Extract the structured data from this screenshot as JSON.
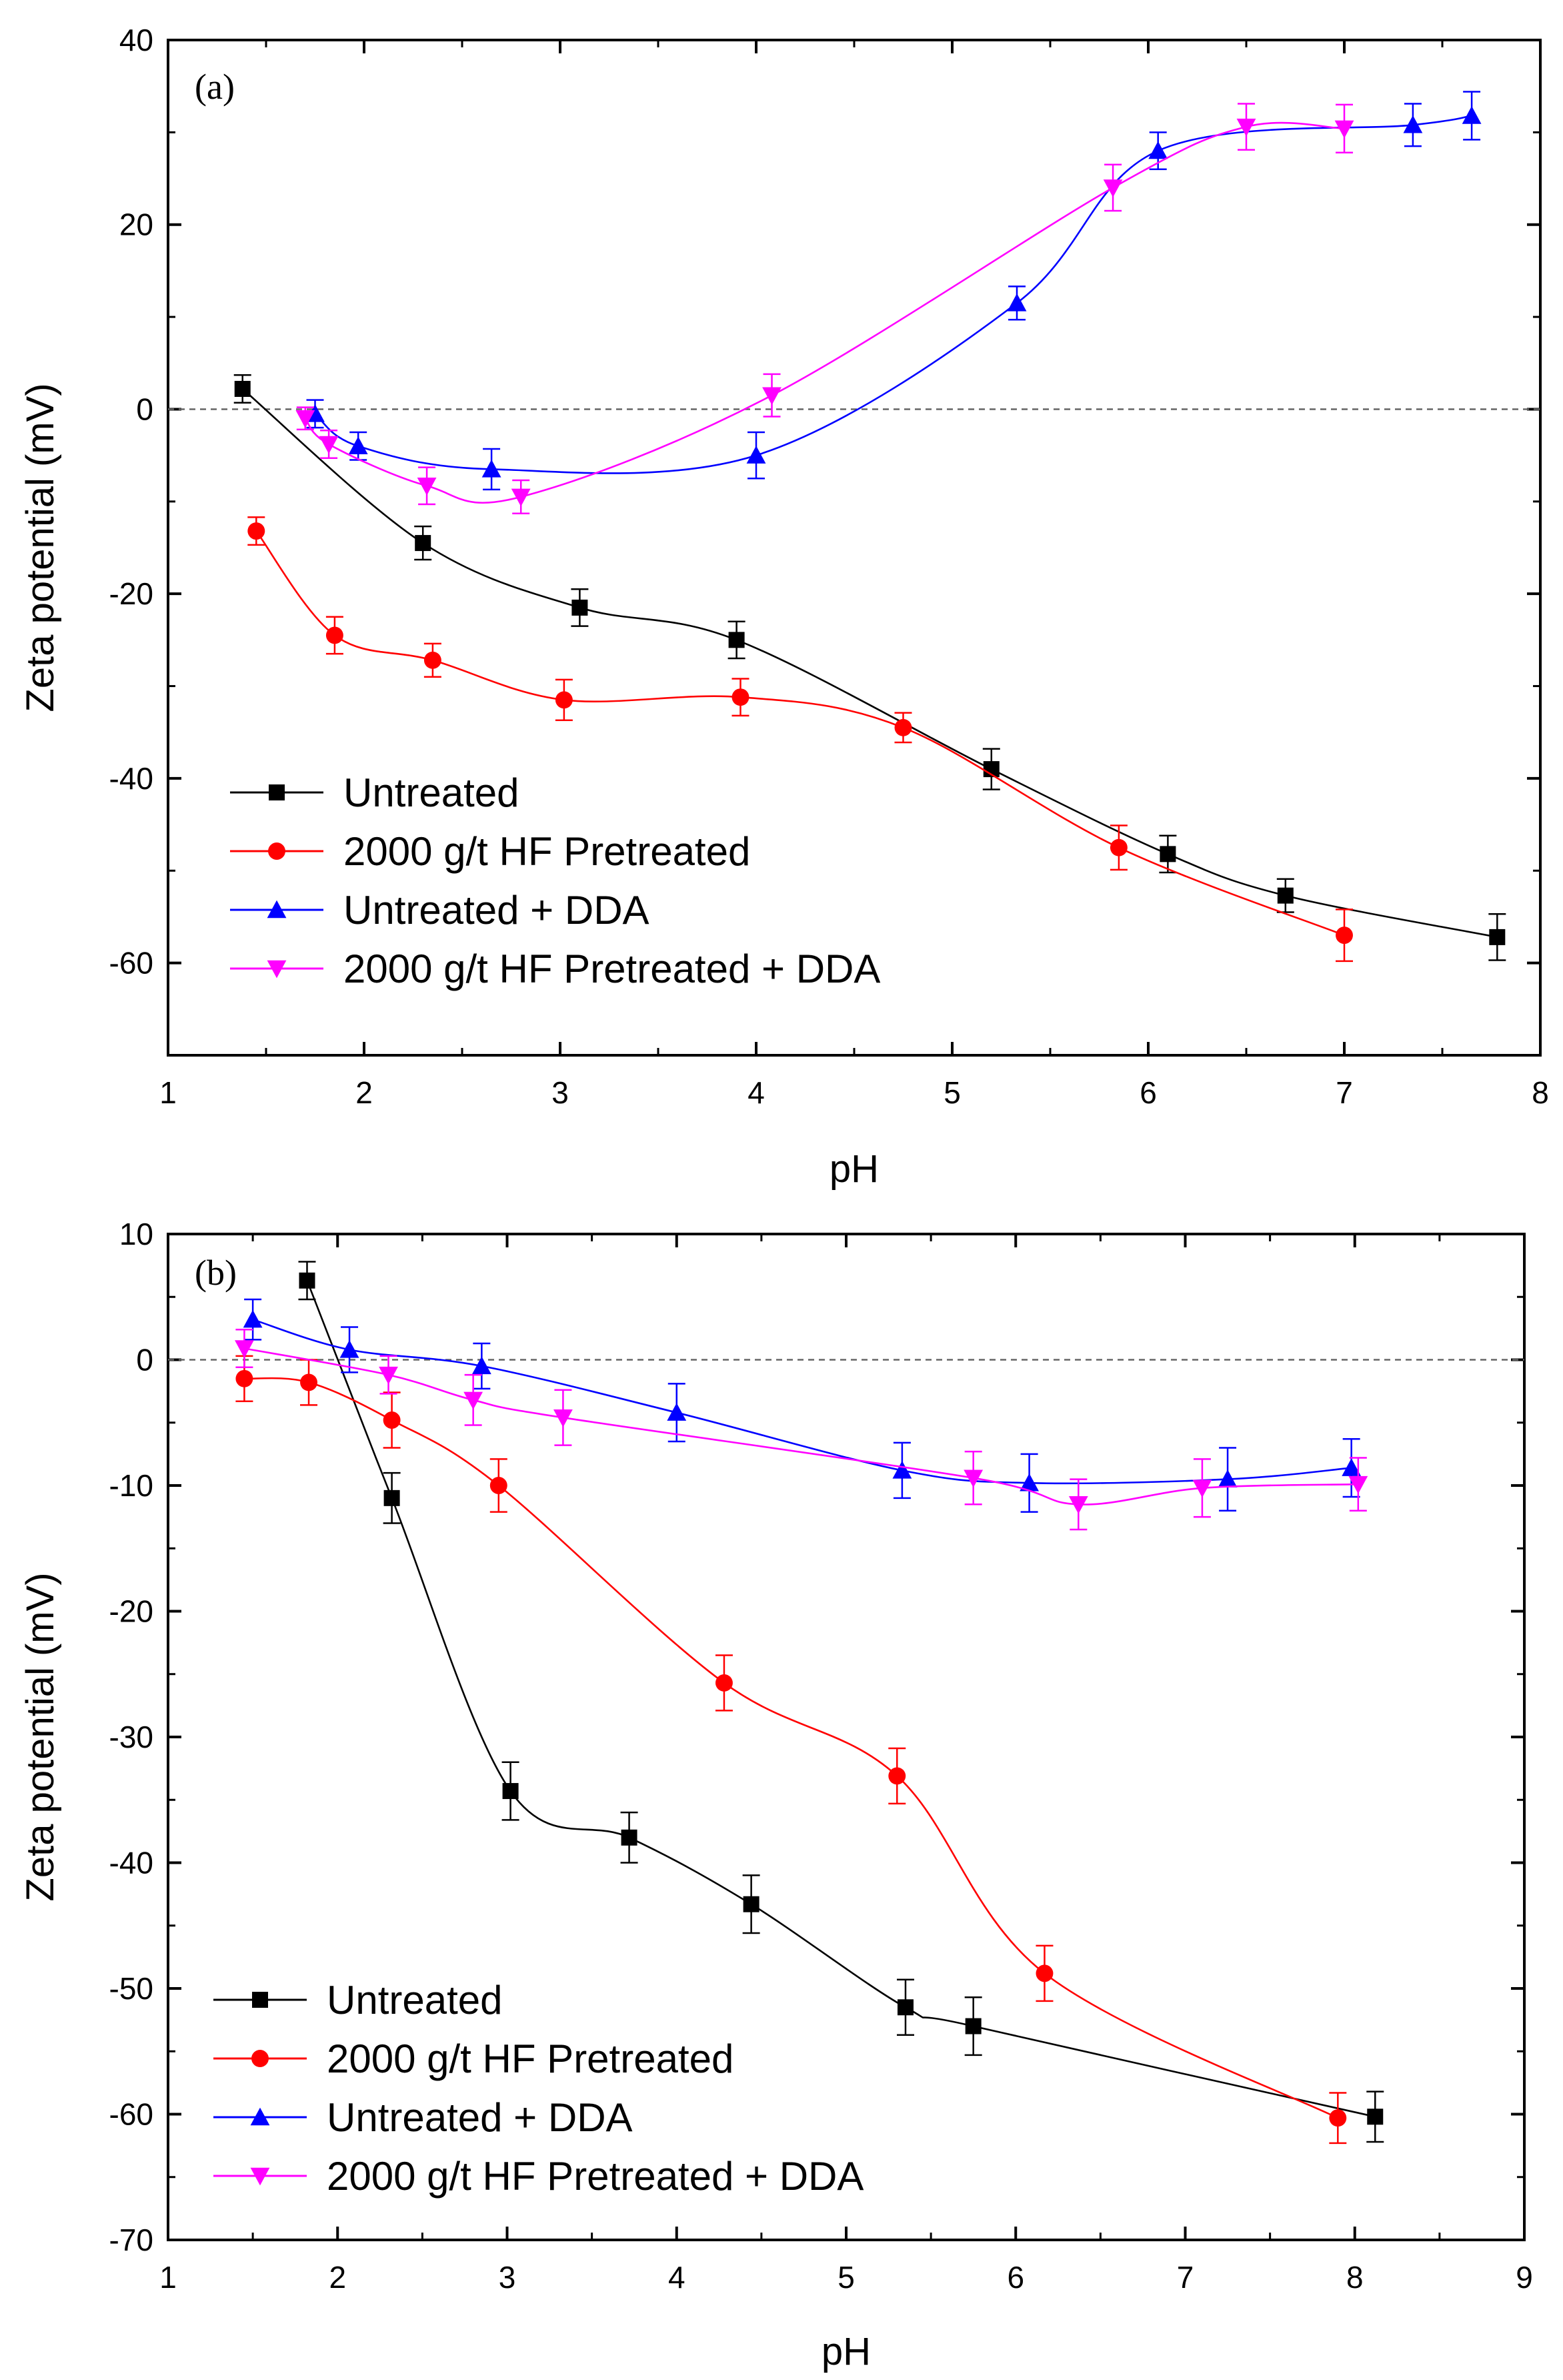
{
  "chart_data": [
    {
      "type": "line",
      "panel_label": "(a)",
      "xlabel": "pH",
      "ylabel": "Zeta potential (mV)",
      "xlim": [
        1,
        8
      ],
      "ylim": [
        -70,
        40
      ],
      "xticks": [
        1,
        2,
        3,
        4,
        5,
        6,
        7,
        8
      ],
      "yticks": [
        -60,
        -40,
        -20,
        0,
        20,
        40
      ],
      "zero_line": true,
      "legend_position": "bottom-left",
      "series": [
        {
          "name": "Untreated",
          "color": "#000000",
          "marker": "square",
          "x": [
            1.38,
            2.3,
            3.1,
            3.9,
            5.2,
            6.1,
            6.7,
            7.78
          ],
          "y": [
            2.2,
            -14.5,
            -21.5,
            -25.0,
            -39.0,
            -48.2,
            -52.7,
            -57.2
          ],
          "err": [
            1.5,
            1.8,
            2.0,
            2.0,
            2.2,
            2.0,
            1.8,
            2.5
          ]
        },
        {
          "name": "2000 g/t HF Pretreated",
          "color": "#ff0000",
          "marker": "circle",
          "x": [
            1.45,
            1.85,
            2.35,
            3.02,
            3.92,
            4.75,
            5.85,
            7.0
          ],
          "y": [
            -13.2,
            -24.5,
            -27.2,
            -31.5,
            -31.2,
            -34.5,
            -47.5,
            -57.0
          ],
          "err": [
            1.5,
            2.0,
            1.8,
            2.2,
            2.0,
            1.6,
            2.4,
            2.8
          ]
        },
        {
          "name": "Untreated + DDA",
          "color": "#0000ff",
          "marker": "triangle-up",
          "x": [
            1.75,
            1.97,
            2.65,
            4.0,
            5.33,
            6.05,
            7.35,
            7.65
          ],
          "y": [
            -0.5,
            -4.0,
            -6.5,
            -5.0,
            11.5,
            28.0,
            30.8,
            31.8
          ],
          "err": [
            1.5,
            1.5,
            2.2,
            2.5,
            1.8,
            2.0,
            2.3,
            2.6
          ]
        },
        {
          "name": "2000 g/t HF Pretreated + DDA",
          "color": "#ff00ff",
          "marker": "triangle-down",
          "x": [
            1.7,
            1.82,
            2.32,
            2.8,
            4.08,
            5.82,
            6.5,
            7.0
          ],
          "y": [
            -1.0,
            -3.8,
            -8.3,
            -9.5,
            1.5,
            24.0,
            30.6,
            30.4
          ],
          "err": [
            1.2,
            1.5,
            2.0,
            1.8,
            2.3,
            2.5,
            2.5,
            2.6
          ]
        }
      ]
    },
    {
      "type": "line",
      "panel_label": "(b)",
      "xlabel": "pH",
      "ylabel": "Zeta potential (mV)",
      "xlim": [
        1,
        9
      ],
      "ylim": [
        -70,
        10
      ],
      "xticks": [
        1,
        2,
        3,
        4,
        5,
        6,
        7,
        8,
        9
      ],
      "yticks": [
        -70,
        -60,
        -50,
        -40,
        -30,
        -20,
        -10,
        0,
        10
      ],
      "zero_line": true,
      "legend_position": "bottom-left",
      "series": [
        {
          "name": "Untreated",
          "color": "#000000",
          "marker": "square",
          "x": [
            1.82,
            2.32,
            3.02,
            3.72,
            4.44,
            5.35,
            5.75,
            8.12
          ],
          "y": [
            6.3,
            -11.0,
            -34.3,
            -38.0,
            -43.3,
            -51.5,
            -53.0,
            -60.2
          ],
          "err": [
            1.5,
            2.0,
            2.3,
            2.0,
            2.3,
            2.2,
            2.3,
            2.0
          ]
        },
        {
          "name": "2000 g/t HF Pretreated",
          "color": "#ff0000",
          "marker": "circle",
          "x": [
            1.45,
            1.83,
            2.32,
            2.95,
            4.28,
            5.3,
            6.17,
            7.9
          ],
          "y": [
            -1.5,
            -1.8,
            -4.8,
            -10.0,
            -25.7,
            -33.1,
            -48.8,
            -60.3
          ],
          "err": [
            1.8,
            1.8,
            2.2,
            2.1,
            2.2,
            2.2,
            2.2,
            2.0
          ]
        },
        {
          "name": "Untreated + DDA",
          "color": "#0000ff",
          "marker": "triangle-up",
          "x": [
            1.5,
            2.07,
            2.85,
            4.0,
            5.33,
            6.08,
            7.25,
            7.98
          ],
          "y": [
            3.2,
            0.8,
            -0.5,
            -4.2,
            -8.8,
            -9.8,
            -9.5,
            -8.6
          ],
          "err": [
            1.6,
            1.8,
            1.8,
            2.3,
            2.2,
            2.3,
            2.5,
            2.3
          ]
        },
        {
          "name": "2000 g/t HF Pretreated + DDA",
          "color": "#ff00ff",
          "marker": "triangle-down",
          "x": [
            1.45,
            2.3,
            2.8,
            3.33,
            5.75,
            6.37,
            7.1,
            8.02
          ],
          "y": [
            0.9,
            -1.2,
            -3.2,
            -4.6,
            -9.4,
            -11.5,
            -10.2,
            -9.9
          ],
          "err": [
            1.5,
            1.5,
            2.0,
            2.2,
            2.1,
            2.0,
            2.3,
            2.1
          ]
        }
      ]
    }
  ]
}
